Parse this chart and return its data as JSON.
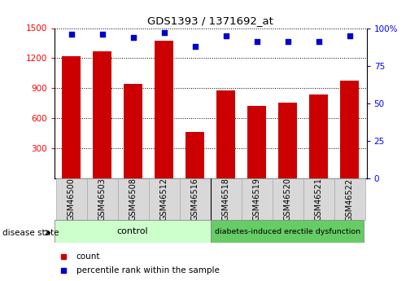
{
  "title": "GDS1393 / 1371692_at",
  "samples": [
    "GSM46500",
    "GSM46503",
    "GSM46508",
    "GSM46512",
    "GSM46516",
    "GSM46518",
    "GSM46519",
    "GSM46520",
    "GSM46521",
    "GSM46522"
  ],
  "counts": [
    1220,
    1270,
    940,
    1370,
    460,
    880,
    720,
    760,
    840,
    975
  ],
  "percentile_ranks": [
    96,
    96,
    94,
    97,
    88,
    95,
    91,
    91,
    91,
    95
  ],
  "control_label": "control",
  "disease_label": "diabetes-induced erectile dysfunction",
  "group_label": "disease state",
  "bar_color": "#cc0000",
  "dot_color": "#0000cc",
  "ylim_left": [
    0,
    1500
  ],
  "ylim_right": [
    0,
    100
  ],
  "yticks_left": [
    300,
    600,
    900,
    1200,
    1500
  ],
  "ytick_labels_left": [
    "300",
    "600",
    "900",
    "1200",
    "1500"
  ],
  "yticks_right": [
    0,
    25,
    50,
    75,
    100
  ],
  "ytick_labels_right": [
    "0",
    "25",
    "50",
    "75",
    "100%"
  ],
  "legend_count_label": "count",
  "legend_pct_label": "percentile rank within the sample",
  "background_color": "#ffffff",
  "control_bg": "#ccffcc",
  "disease_bg": "#66cc66",
  "sample_bg": "#d8d8d8",
  "sample_border": "#aaaaaa"
}
